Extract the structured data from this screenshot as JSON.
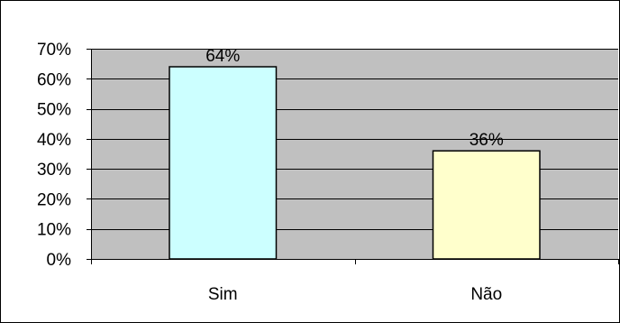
{
  "chart_data": {
    "type": "bar",
    "categories": [
      "Sim",
      "Não"
    ],
    "values": [
      64,
      36
    ],
    "data_labels": [
      "64%",
      "36%"
    ],
    "title": "",
    "xlabel": "",
    "ylabel": "",
    "ylim": [
      0,
      70
    ],
    "y_ticks": [
      0,
      10,
      20,
      30,
      40,
      50,
      60,
      70
    ],
    "y_tick_labels": [
      "0%",
      "10%",
      "20%",
      "30%",
      "40%",
      "50%",
      "60%",
      "70%"
    ],
    "grid": true,
    "legend": "none",
    "colors": {
      "plot_background": "#c0c0c0",
      "gridline": "#000000",
      "bars": [
        "#ccffff",
        "#ffffcc"
      ],
      "bar_border": "#000000"
    }
  }
}
